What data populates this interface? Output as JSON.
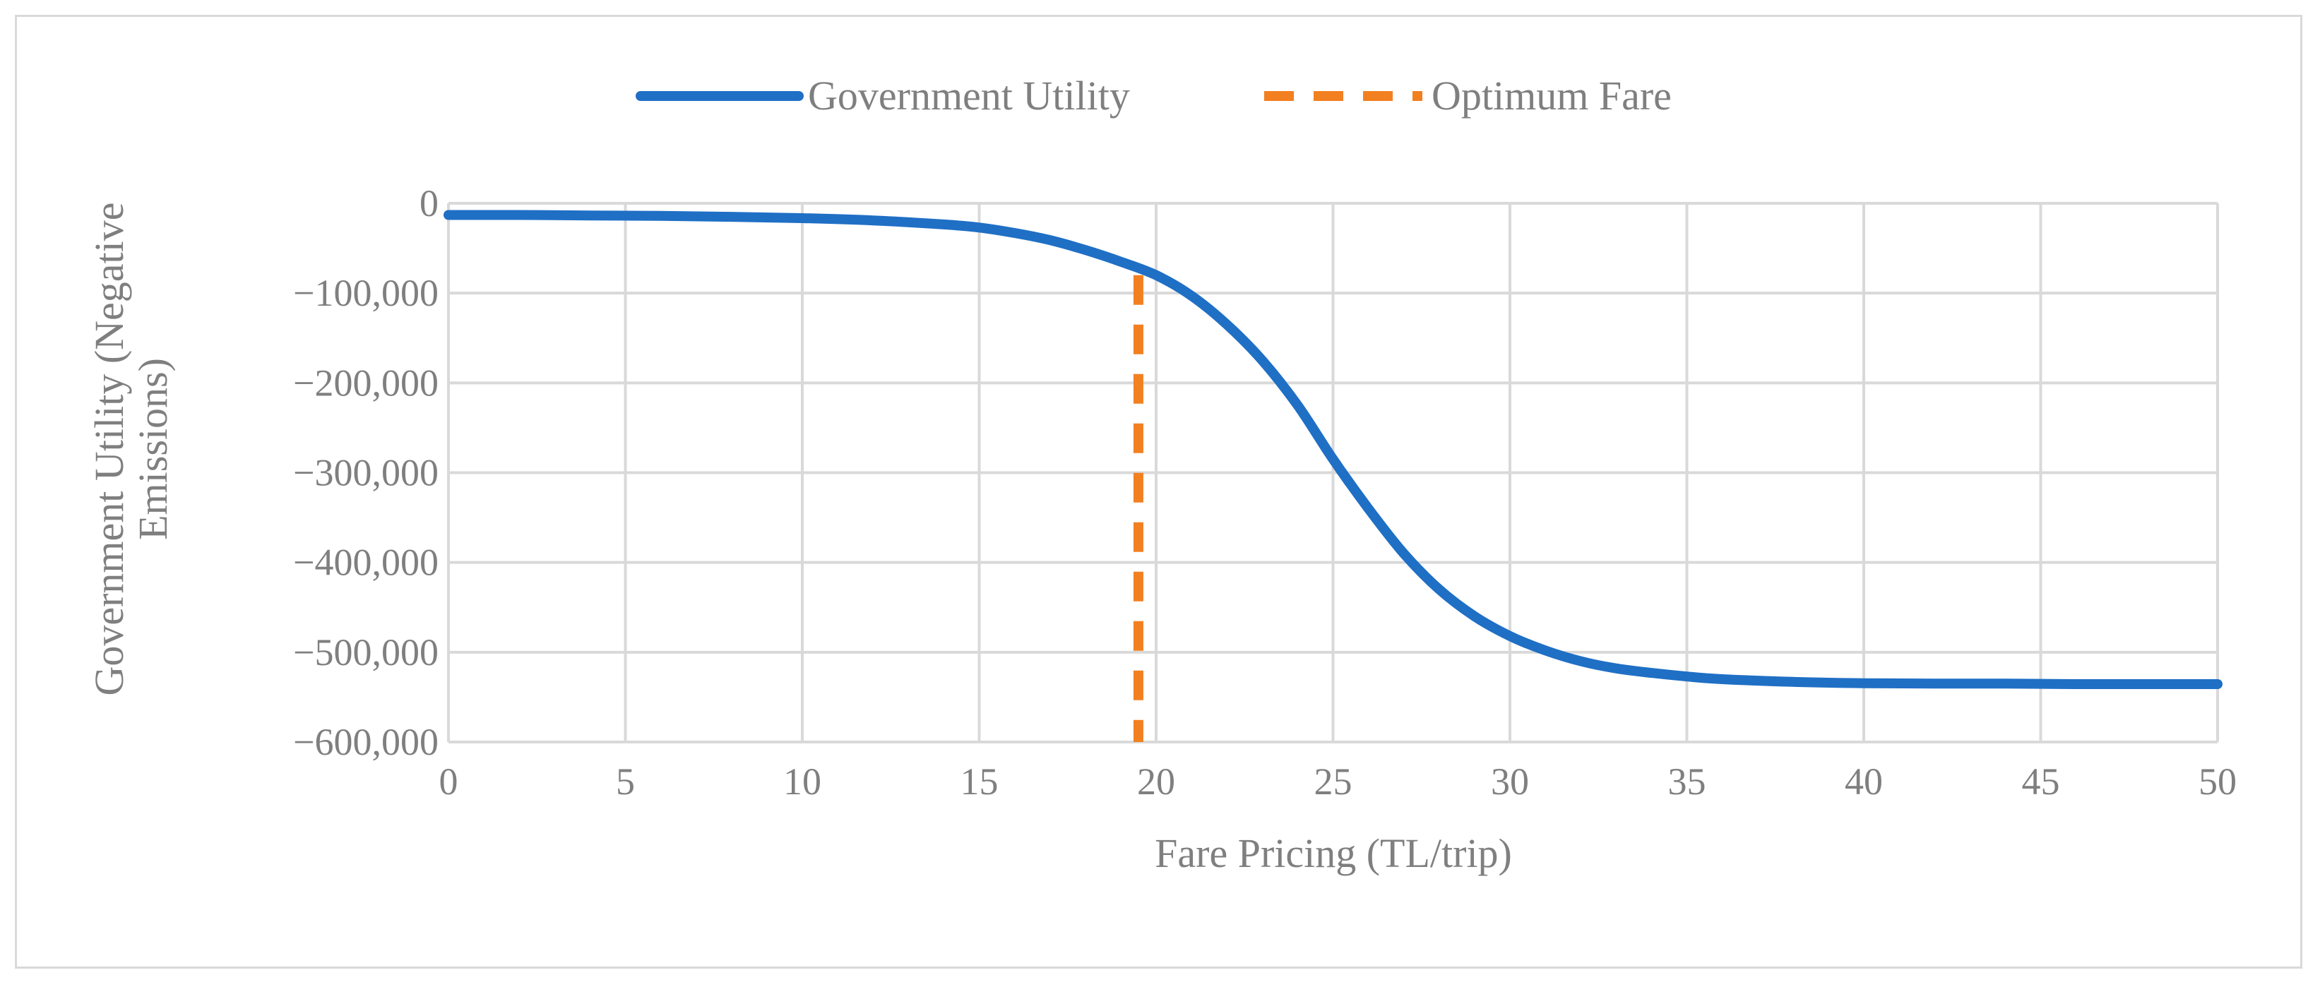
{
  "chart_data": {
    "type": "line",
    "title": "",
    "xlabel": "Fare Pricing (TL/trip)",
    "ylabel_lines": [
      "Government Utility (Negative",
      "Emissions)"
    ],
    "xlim": [
      0,
      50
    ],
    "ylim": [
      -600000,
      0
    ],
    "x_ticks": [
      0,
      5,
      10,
      15,
      20,
      25,
      30,
      35,
      40,
      45,
      50
    ],
    "y_ticks": [
      0,
      -100000,
      -200000,
      -300000,
      -400000,
      -500000,
      -600000
    ],
    "x_tick_labels": [
      "0",
      "5",
      "10",
      "15",
      "20",
      "25",
      "30",
      "35",
      "40",
      "45",
      "50"
    ],
    "y_tick_labels": [
      "0",
      "−100,000",
      "−200,000",
      "−300,000",
      "−400,000",
      "−500,000",
      "−600,000"
    ],
    "grid": true,
    "legend_position": "top-center",
    "series": [
      {
        "name": "Government Utility",
        "color": "#1f6fc5",
        "style": "solid",
        "x": [
          0,
          2,
          4,
          6,
          8,
          10,
          12,
          14,
          15,
          16,
          17,
          18,
          19,
          20,
          21,
          22,
          23,
          24,
          25,
          26,
          27,
          28,
          29,
          30,
          31,
          32,
          33,
          34,
          35,
          36,
          38,
          40,
          42,
          44,
          46,
          48,
          50
        ],
        "y": [
          -13000,
          -13000,
          -13500,
          -14000,
          -15000,
          -16500,
          -19000,
          -23500,
          -27000,
          -33000,
          -41000,
          -52000,
          -65000,
          -80000,
          -103000,
          -135000,
          -175000,
          -225000,
          -285000,
          -340000,
          -390000,
          -430000,
          -460000,
          -482000,
          -498000,
          -510000,
          -518000,
          -523000,
          -527000,
          -530000,
          -533000,
          -534500,
          -535000,
          -535000,
          -535500,
          -535500,
          -535500
        ]
      },
      {
        "name": "Optimum Fare",
        "color": "#f28021",
        "style": "dashed",
        "x": [
          19.5,
          19.5
        ],
        "y": [
          -80000,
          -600000
        ]
      }
    ]
  }
}
